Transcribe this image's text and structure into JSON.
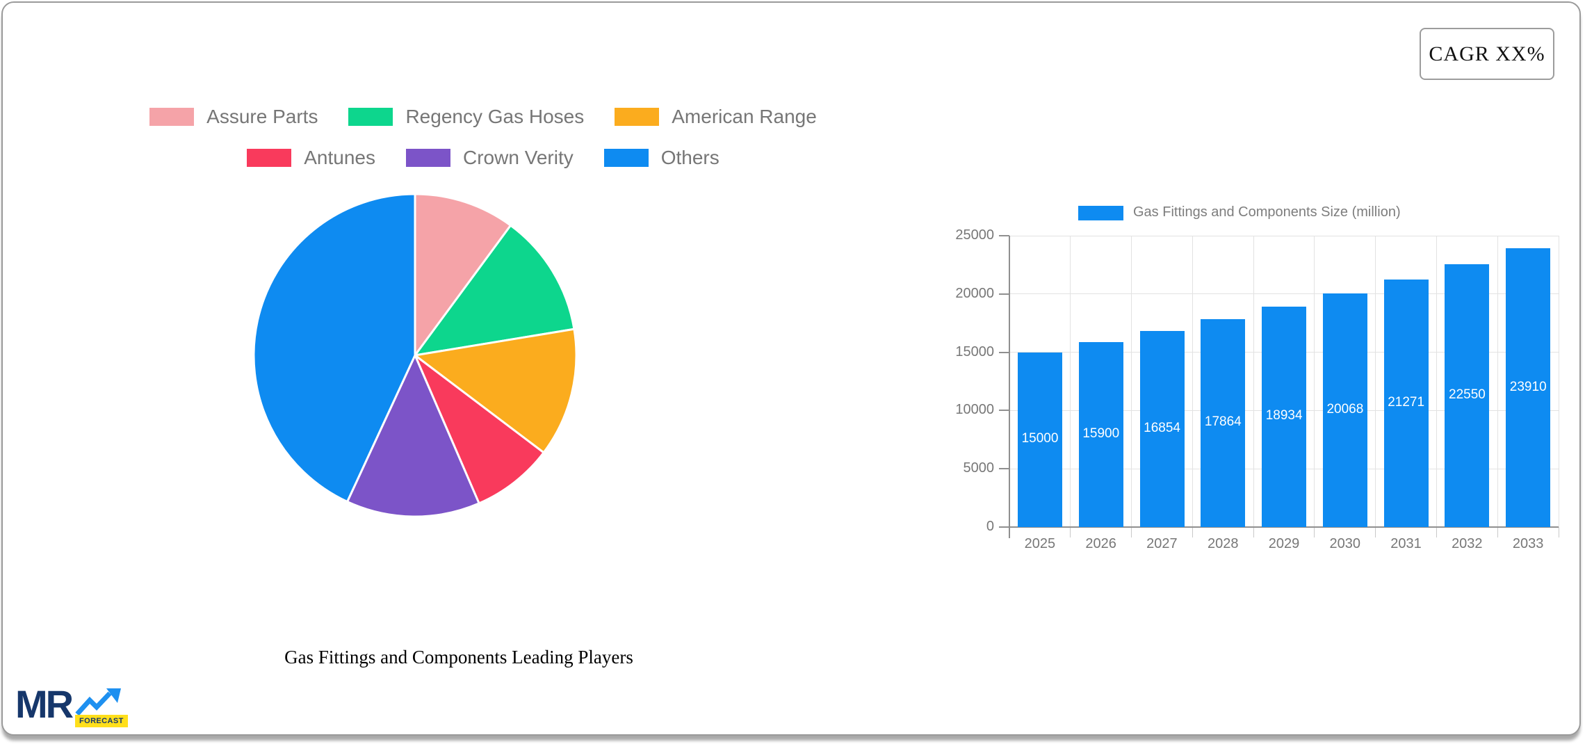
{
  "card": {
    "cagr_label": "CAGR XX%"
  },
  "pie_legend": {
    "rows": [
      [
        {
          "label": "Assure Parts",
          "color": "#F5A3A8"
        },
        {
          "label": "Regency Gas Hoses",
          "color": "#0DD68D"
        },
        {
          "label": "American Range",
          "color": "#FBAC1E"
        }
      ],
      [
        {
          "label": "Antunes",
          "color": "#F93A5C"
        },
        {
          "label": "Crown Verity",
          "color": "#7C54C8"
        },
        {
          "label": "Others",
          "color": "#0E8BF1"
        }
      ]
    ]
  },
  "chart_data": [
    {
      "type": "pie",
      "title": "Gas Fittings and Components Leading Players",
      "labels": [
        "Assure Parts",
        "Regency Gas Hoses",
        "American Range",
        "Antunes",
        "Crown Verity",
        "Others"
      ],
      "values_pct": [
        10.1,
        12.3,
        12.9,
        8.2,
        13.4,
        43.1
      ],
      "colors": [
        "#F5A3A8",
        "#0DD68D",
        "#FBAC1E",
        "#F93A5C",
        "#7C54C8",
        "#0E8BF1"
      ],
      "start_angle_deg": 0,
      "direction": "clockwise",
      "legend_position": "top"
    },
    {
      "type": "bar",
      "legend_label": "Gas Fittings and Components Size (million)",
      "categories": [
        "2025",
        "2026",
        "2027",
        "2028",
        "2029",
        "2030",
        "2031",
        "2032",
        "2033"
      ],
      "values": [
        15000,
        15900,
        16854,
        17864,
        18934,
        20068,
        21271,
        22550,
        23910
      ],
      "bar_color": "#0E8BF1",
      "value_label_color": "#FFFFFF",
      "ylabel": "",
      "xlabel": "",
      "ylim": [
        0,
        25000
      ],
      "y_ticks": [
        0,
        5000,
        10000,
        15000,
        20000,
        25000
      ],
      "grid": true,
      "legend_position": "top"
    }
  ],
  "logo": {
    "mr": "MR",
    "forecast": "FORECAST",
    "navy": "#16376b",
    "blue": "#1e90f0",
    "yellow": "#ffdf1b"
  }
}
